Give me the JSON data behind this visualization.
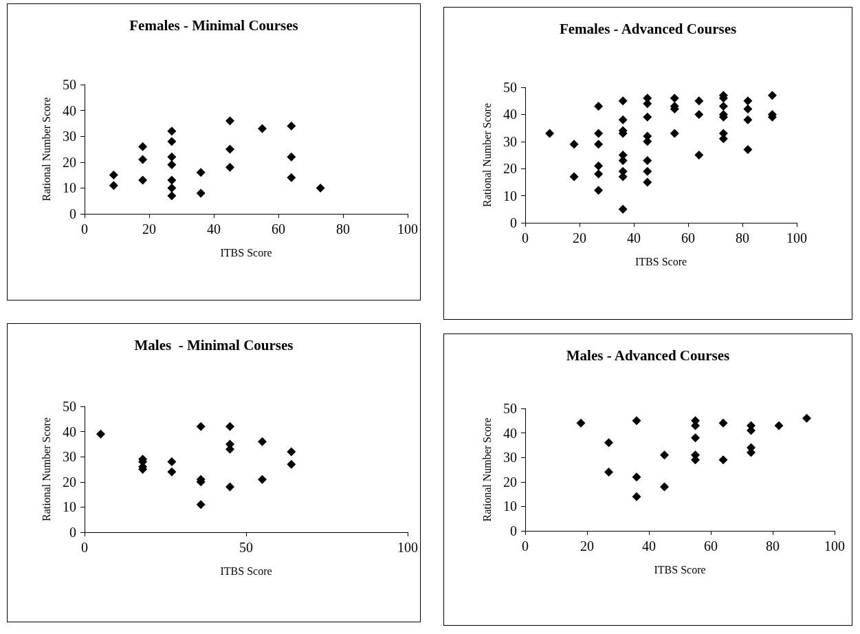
{
  "chart_data": [
    {
      "type": "scatter",
      "title": "Females - Minimal Courses",
      "xlabel": "ITBS Score",
      "ylabel": "Rational Number Score",
      "color": "#000000",
      "marker": "diamond",
      "grid": false,
      "xlim": [
        0,
        100
      ],
      "ylim": [
        0,
        50
      ],
      "xticks": [
        0,
        20,
        40,
        60,
        80,
        100
      ],
      "yticks": [
        0,
        10,
        20,
        30,
        40,
        50
      ],
      "x": [
        9,
        9,
        18,
        18,
        18,
        27,
        27,
        27,
        27,
        27,
        27,
        27,
        36,
        36,
        45,
        45,
        45,
        55,
        64,
        64,
        64,
        73
      ],
      "values": [
        15,
        11,
        26,
        21,
        13,
        32,
        28,
        22,
        19,
        13,
        10,
        7,
        16,
        8,
        36,
        25,
        18,
        33,
        34,
        22,
        14,
        10
      ]
    },
    {
      "type": "scatter",
      "title": "Females - Advanced Courses",
      "xlabel": "ITBS Score",
      "ylabel": "Rational Number Score",
      "color": "#000000",
      "marker": "diamond",
      "grid": false,
      "xlim": [
        0,
        100
      ],
      "ylim": [
        0,
        50
      ],
      "xticks": [
        0,
        20,
        40,
        60,
        80,
        100
      ],
      "yticks": [
        0,
        10,
        20,
        30,
        40,
        50
      ],
      "x": [
        9,
        18,
        18,
        27,
        27,
        27,
        27,
        27,
        27,
        36,
        36,
        36,
        36,
        36,
        36,
        36,
        36,
        36,
        45,
        45,
        45,
        45,
        45,
        45,
        45,
        45,
        55,
        55,
        55,
        55,
        64,
        64,
        64,
        73,
        73,
        73,
        73,
        73,
        73,
        73,
        82,
        82,
        82,
        82,
        91,
        91,
        91
      ],
      "values": [
        33,
        29,
        17,
        43,
        33,
        29,
        21,
        18,
        12,
        45,
        38,
        34,
        33,
        25,
        23,
        19,
        17,
        5,
        46,
        44,
        39,
        32,
        30,
        23,
        19,
        15,
        46,
        43,
        42,
        33,
        45,
        40,
        25,
        47,
        46,
        43,
        40,
        39,
        33,
        31,
        45,
        42,
        38,
        27,
        47,
        40,
        39
      ]
    },
    {
      "type": "scatter",
      "title": "Males  - Minimal Courses",
      "xlabel": "ITBS Score",
      "ylabel": "Rational Number Score",
      "color": "#000000",
      "marker": "diamond",
      "grid": false,
      "xlim": [
        0,
        100
      ],
      "ylim": [
        0,
        50
      ],
      "xticks": [
        0,
        50,
        100
      ],
      "yticks": [
        0,
        10,
        20,
        30,
        40,
        50
      ],
      "x": [
        5,
        18,
        18,
        18,
        18,
        27,
        27,
        36,
        36,
        36,
        36,
        45,
        45,
        45,
        45,
        55,
        55,
        64,
        64
      ],
      "values": [
        39,
        29,
        28,
        26,
        25,
        28,
        24,
        42,
        21,
        20,
        11,
        42,
        35,
        33,
        18,
        36,
        21,
        32,
        27
      ]
    },
    {
      "type": "scatter",
      "title": "Males - Advanced Courses",
      "xlabel": "ITBS Score",
      "ylabel": "Rational Number Score",
      "color": "#000000",
      "marker": "diamond",
      "grid": false,
      "xlim": [
        0,
        100
      ],
      "ylim": [
        0,
        50
      ],
      "xticks": [
        0,
        20,
        40,
        60,
        80,
        100
      ],
      "yticks": [
        0,
        10,
        20,
        30,
        40,
        50
      ],
      "x": [
        18,
        27,
        27,
        36,
        36,
        36,
        45,
        45,
        55,
        55,
        55,
        55,
        55,
        64,
        64,
        73,
        73,
        73,
        73,
        82,
        91
      ],
      "values": [
        44,
        36,
        24,
        45,
        22,
        14,
        31,
        18,
        45,
        43,
        38,
        31,
        29,
        44,
        29,
        43,
        41,
        34,
        32,
        43,
        46
      ]
    }
  ]
}
